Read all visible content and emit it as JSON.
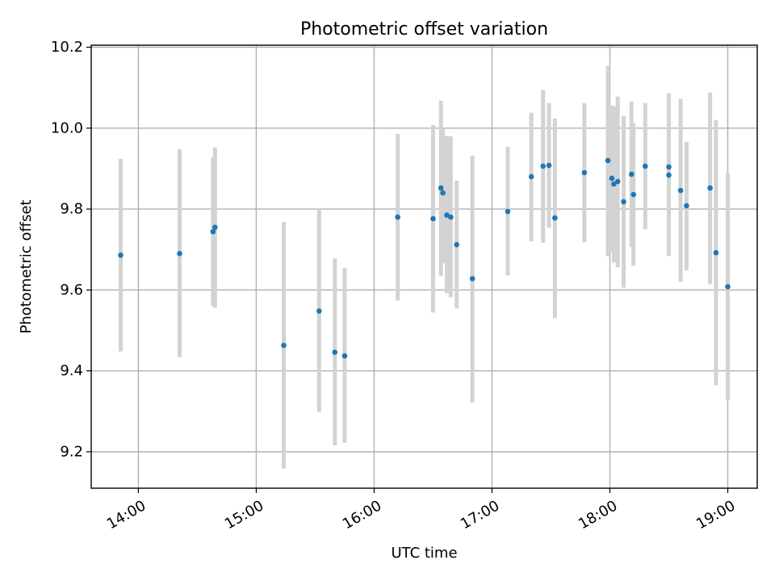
{
  "chart_data": {
    "type": "scatter",
    "title": "Photometric offset variation",
    "xlabel": "UTC time",
    "ylabel": "Photometric offset",
    "x_unit": "UTC time (HH:MM)",
    "xlim": [
      "13:36",
      "19:15"
    ],
    "ylim": [
      9.11,
      10.205
    ],
    "x_ticks": [
      "14:00",
      "15:00",
      "16:00",
      "17:00",
      "18:00",
      "19:00"
    ],
    "y_ticks": [
      9.2,
      9.4,
      9.6,
      9.8,
      10.0,
      10.2
    ],
    "y_tick_labels": [
      "9.2",
      "9.4",
      "9.6",
      "9.8",
      "10.0",
      "10.2"
    ],
    "grid": true,
    "colors": {
      "points": "#1f77b4",
      "errorbars": "#d3d3d3"
    },
    "series": [
      {
        "points": [
          {
            "x": "13:51",
            "y": 9.686,
            "ylow": 9.448,
            "yhigh": 9.924
          },
          {
            "x": "14:21",
            "y": 9.69,
            "ylow": 9.434,
            "yhigh": 9.948
          },
          {
            "x": "14:38",
            "y": 9.744,
            "ylow": 9.56,
            "yhigh": 9.928
          },
          {
            "x": "14:39",
            "y": 9.755,
            "ylow": 9.556,
            "yhigh": 9.952
          },
          {
            "x": "15:14",
            "y": 9.463,
            "ylow": 9.158,
            "yhigh": 9.768
          },
          {
            "x": "15:32",
            "y": 9.548,
            "ylow": 9.298,
            "yhigh": 9.8
          },
          {
            "x": "15:40",
            "y": 9.446,
            "ylow": 9.216,
            "yhigh": 9.678
          },
          {
            "x": "15:45",
            "y": 9.437,
            "ylow": 9.222,
            "yhigh": 9.654
          },
          {
            "x": "16:12",
            "y": 9.78,
            "ylow": 9.574,
            "yhigh": 9.986
          },
          {
            "x": "16:30",
            "y": 9.776,
            "ylow": 9.544,
            "yhigh": 10.008
          },
          {
            "x": "16:34",
            "y": 9.852,
            "ylow": 9.634,
            "yhigh": 10.068
          },
          {
            "x": "16:35",
            "y": 9.84,
            "ylow": 9.666,
            "yhigh": 10.0
          },
          {
            "x": "16:37",
            "y": 9.785,
            "ylow": 9.592,
            "yhigh": 9.98
          },
          {
            "x": "16:39",
            "y": 9.78,
            "ylow": 9.582,
            "yhigh": 9.98
          },
          {
            "x": "16:42",
            "y": 9.712,
            "ylow": 9.554,
            "yhigh": 9.87
          },
          {
            "x": "16:50",
            "y": 9.628,
            "ylow": 9.322,
            "yhigh": 9.932
          },
          {
            "x": "17:08",
            "y": 9.794,
            "ylow": 9.636,
            "yhigh": 9.954
          },
          {
            "x": "17:20",
            "y": 9.88,
            "ylow": 9.72,
            "yhigh": 10.038
          },
          {
            "x": "17:26",
            "y": 9.906,
            "ylow": 9.716,
            "yhigh": 10.094
          },
          {
            "x": "17:29",
            "y": 9.908,
            "ylow": 9.754,
            "yhigh": 10.062
          },
          {
            "x": "17:32",
            "y": 9.778,
            "ylow": 9.53,
            "yhigh": 10.024
          },
          {
            "x": "17:47",
            "y": 9.89,
            "ylow": 9.718,
            "yhigh": 10.062
          },
          {
            "x": "17:59",
            "y": 9.92,
            "ylow": 9.684,
            "yhigh": 10.154
          },
          {
            "x": "18:01",
            "y": 9.876,
            "ylow": 9.694,
            "yhigh": 10.056
          },
          {
            "x": "18:02",
            "y": 9.862,
            "ylow": 9.668,
            "yhigh": 10.054
          },
          {
            "x": "18:04",
            "y": 9.868,
            "ylow": 9.656,
            "yhigh": 10.078
          },
          {
            "x": "18:07",
            "y": 9.818,
            "ylow": 9.606,
            "yhigh": 10.03
          },
          {
            "x": "18:11",
            "y": 9.886,
            "ylow": 9.706,
            "yhigh": 10.066
          },
          {
            "x": "18:12",
            "y": 9.836,
            "ylow": 9.66,
            "yhigh": 10.012
          },
          {
            "x": "18:18",
            "y": 9.906,
            "ylow": 9.75,
            "yhigh": 10.062
          },
          {
            "x": "18:30",
            "y": 9.904,
            "ylow": 9.72,
            "yhigh": 10.086
          },
          {
            "x": "18:30",
            "y": 9.884,
            "ylow": 9.684,
            "yhigh": 10.084
          },
          {
            "x": "18:36",
            "y": 9.846,
            "ylow": 9.62,
            "yhigh": 10.072
          },
          {
            "x": "18:39",
            "y": 9.808,
            "ylow": 9.648,
            "yhigh": 9.966
          },
          {
            "x": "18:51",
            "y": 9.852,
            "ylow": 9.614,
            "yhigh": 10.088
          },
          {
            "x": "18:54",
            "y": 9.692,
            "ylow": 9.364,
            "yhigh": 10.02
          },
          {
            "x": "19:00",
            "y": 9.608,
            "ylow": 9.328,
            "yhigh": 9.888
          }
        ]
      }
    ]
  }
}
